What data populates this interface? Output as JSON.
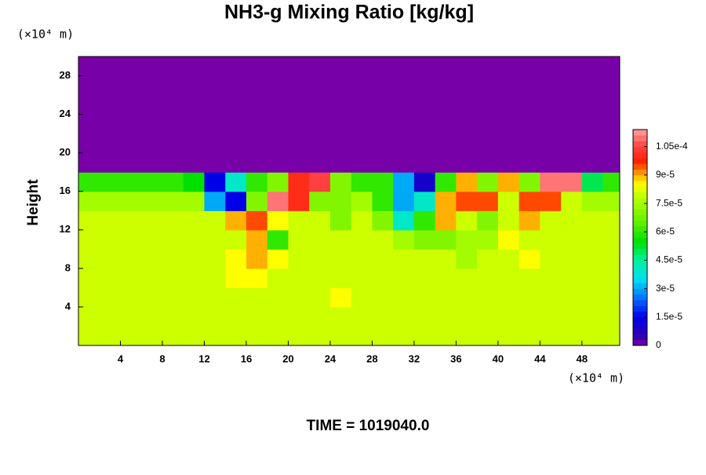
{
  "chart_data": {
    "type": "heatmap",
    "title": "NH3-g Mixing Ratio [kg/kg]",
    "ylabel": "Height",
    "y_unit": "(×10⁴ m)",
    "x_unit": "(×10⁴ m)",
    "footer": "TIME = 1019040.0",
    "xlim": [
      0,
      51.6
    ],
    "ylim": [
      0,
      30
    ],
    "xticks": [
      4,
      8,
      12,
      16,
      20,
      24,
      28,
      32,
      36,
      40,
      44,
      48
    ],
    "yticks": [
      4,
      8,
      12,
      16,
      20,
      24,
      28
    ],
    "zlim": [
      0,
      0.000114
    ],
    "zticks": [
      0,
      {
        "value": 1.5e-05,
        "label": "1.5e-5"
      },
      {
        "value": 3e-05,
        "label": "3e-5"
      },
      {
        "value": 4.5e-05,
        "label": "4.5e-5"
      },
      {
        "value": 6e-05,
        "label": "6e-5"
      },
      {
        "value": 7.5e-05,
        "label": "7.5e-5"
      },
      {
        "value": 9e-05,
        "label": "9e-5"
      },
      {
        "value": 0.000105,
        "label": "1.05e-4"
      }
    ],
    "colorscale": [
      {
        "value": 0,
        "color": "#7800a8"
      },
      {
        "value": 5e-06,
        "color": "#3000b0"
      },
      {
        "value": 1.5e-05,
        "color": "#0000e8"
      },
      {
        "value": 2.5e-05,
        "color": "#0070ff"
      },
      {
        "value": 3.5e-05,
        "color": "#00e0f0"
      },
      {
        "value": 4.5e-05,
        "color": "#00f0a0"
      },
      {
        "value": 5.5e-05,
        "color": "#00e000"
      },
      {
        "value": 6.5e-05,
        "color": "#60f000"
      },
      {
        "value": 7.8e-05,
        "color": "#b8ff00"
      },
      {
        "value": 8.5e-05,
        "color": "#ffff00"
      },
      {
        "value": 9e-05,
        "color": "#ffb000"
      },
      {
        "value": 9.7e-05,
        "color": "#ff2000"
      },
      {
        "value": 0.000105,
        "color": "#ff4040"
      },
      {
        "value": 0.000114,
        "color": "#ffa0a0"
      }
    ],
    "x": [
      1,
      3,
      5,
      7,
      9,
      11,
      13,
      15,
      17,
      19,
      21,
      23,
      25,
      27,
      29,
      31,
      33,
      35,
      37,
      39,
      41,
      43,
      45,
      47,
      49,
      51
    ],
    "y": [
      1,
      3,
      5,
      7,
      9,
      11,
      13,
      15,
      17,
      19,
      21,
      23,
      25,
      27,
      29
    ],
    "z": [
      [
        8e-05,
        8e-05,
        8e-05,
        8e-05,
        8e-05,
        8e-05,
        8e-05,
        8e-05,
        8e-05,
        8e-05,
        8e-05,
        8e-05,
        8e-05,
        8e-05,
        8e-05,
        8e-05,
        8e-05,
        8e-05,
        8e-05,
        8e-05,
        8e-05,
        8e-05,
        8e-05,
        8e-05,
        8e-05,
        8e-05
      ],
      [
        8e-05,
        8e-05,
        8e-05,
        8e-05,
        8e-05,
        8e-05,
        8e-05,
        8e-05,
        8e-05,
        8e-05,
        8e-05,
        8e-05,
        8e-05,
        8e-05,
        8e-05,
        8e-05,
        8e-05,
        8e-05,
        8e-05,
        8e-05,
        8e-05,
        8e-05,
        8e-05,
        8e-05,
        8e-05,
        8e-05
      ],
      [
        8e-05,
        8e-05,
        8e-05,
        8e-05,
        8e-05,
        8e-05,
        8e-05,
        8e-05,
        8e-05,
        8e-05,
        8e-05,
        8e-05,
        8.5e-05,
        8e-05,
        8e-05,
        8e-05,
        8e-05,
        8e-05,
        8e-05,
        8e-05,
        8e-05,
        8e-05,
        8e-05,
        8e-05,
        8e-05,
        8e-05
      ],
      [
        8e-05,
        8e-05,
        8e-05,
        8e-05,
        8e-05,
        8e-05,
        8e-05,
        8.5e-05,
        8.5e-05,
        8e-05,
        8e-05,
        8e-05,
        8e-05,
        8e-05,
        8e-05,
        8e-05,
        8e-05,
        8e-05,
        8e-05,
        8e-05,
        8e-05,
        8e-05,
        8e-05,
        8e-05,
        8e-05,
        8e-05
      ],
      [
        8e-05,
        8e-05,
        8e-05,
        8e-05,
        8e-05,
        8e-05,
        8e-05,
        8.5e-05,
        9e-05,
        8.5e-05,
        8e-05,
        8e-05,
        8e-05,
        8e-05,
        8e-05,
        8e-05,
        8e-05,
        8e-05,
        7.5e-05,
        8e-05,
        8e-05,
        8.5e-05,
        8e-05,
        8e-05,
        8e-05,
        8e-05
      ],
      [
        8e-05,
        8e-05,
        8e-05,
        8e-05,
        8e-05,
        8e-05,
        8e-05,
        8e-05,
        9e-05,
        6e-05,
        8e-05,
        8e-05,
        8e-05,
        8e-05,
        8e-05,
        7.5e-05,
        7e-05,
        7e-05,
        7.5e-05,
        7.5e-05,
        8.5e-05,
        8e-05,
        8e-05,
        8e-05,
        8e-05,
        8e-05
      ],
      [
        8e-05,
        8e-05,
        8e-05,
        8e-05,
        8e-05,
        8e-05,
        8e-05,
        9e-05,
        9.5e-05,
        8.5e-05,
        8e-05,
        8e-05,
        7e-05,
        8e-05,
        7e-05,
        4e-05,
        6e-05,
        9e-05,
        8e-05,
        7e-05,
        8e-05,
        9e-05,
        8e-05,
        8e-05,
        8e-05,
        8e-05
      ],
      [
        7.5e-05,
        7.5e-05,
        7.5e-05,
        7.5e-05,
        7.5e-05,
        7.5e-05,
        3e-05,
        1.5e-05,
        7e-05,
        0.00011,
        0.0001,
        7e-05,
        7e-05,
        7.5e-05,
        6e-05,
        3e-05,
        4e-05,
        9e-05,
        9.5e-05,
        9.5e-05,
        8e-05,
        9.5e-05,
        9.5e-05,
        8e-05,
        7.5e-05,
        7.5e-05
      ],
      [
        6e-05,
        6e-05,
        6e-05,
        6e-05,
        6e-05,
        5.5e-05,
        1.5e-05,
        4e-05,
        6e-05,
        7e-05,
        0.0001,
        0.000105,
        7e-05,
        6e-05,
        6e-05,
        3e-05,
        1e-05,
        6e-05,
        9e-05,
        7e-05,
        9e-05,
        7e-05,
        0.00011,
        0.00011,
        5e-05,
        6e-05
      ],
      [
        0,
        0,
        0,
        0,
        0,
        0,
        0,
        0,
        0,
        0,
        0,
        0,
        0,
        0,
        0,
        0,
        0,
        0,
        0,
        0,
        0,
        0,
        0,
        0,
        0,
        0
      ],
      [
        0,
        0,
        0,
        0,
        0,
        0,
        0,
        0,
        0,
        0,
        0,
        0,
        0,
        0,
        0,
        0,
        0,
        0,
        0,
        0,
        0,
        0,
        0,
        0,
        0,
        0
      ],
      [
        0,
        0,
        0,
        0,
        0,
        0,
        0,
        0,
        0,
        0,
        0,
        0,
        0,
        0,
        0,
        0,
        0,
        0,
        0,
        0,
        0,
        0,
        0,
        0,
        0,
        0
      ],
      [
        0,
        0,
        0,
        0,
        0,
        0,
        0,
        0,
        0,
        0,
        0,
        0,
        0,
        0,
        0,
        0,
        0,
        0,
        0,
        0,
        0,
        0,
        0,
        0,
        0,
        0
      ],
      [
        0,
        0,
        0,
        0,
        0,
        0,
        0,
        0,
        0,
        0,
        0,
        0,
        0,
        0,
        0,
        0,
        0,
        0,
        0,
        0,
        0,
        0,
        0,
        0,
        0,
        0
      ],
      [
        0,
        0,
        0,
        0,
        0,
        0,
        0,
        0,
        0,
        0,
        0,
        0,
        0,
        0,
        0,
        0,
        0,
        0,
        0,
        0,
        0,
        0,
        0,
        0,
        0,
        0
      ]
    ]
  }
}
